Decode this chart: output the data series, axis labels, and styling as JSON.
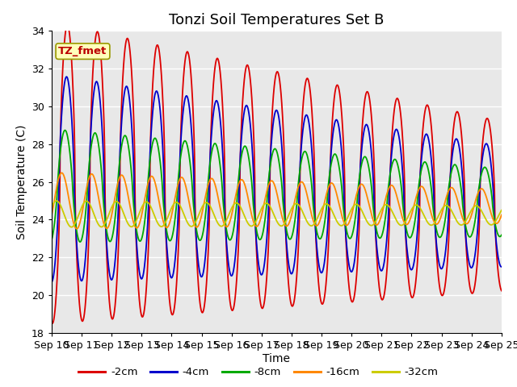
{
  "title": "Tonzi Soil Temperatures Set B",
  "xlabel": "Time",
  "ylabel": "Soil Temperature (C)",
  "ylim": [
    18,
    34
  ],
  "yticks": [
    18,
    20,
    22,
    24,
    26,
    28,
    30,
    32,
    34
  ],
  "n_days": 15,
  "legend_label": "TZ_fmet",
  "xtick_labels": [
    "Sep 10",
    "Sep 11",
    "Sep 12",
    "Sep 13",
    "Sep 14",
    "Sep 15",
    "Sep 16",
    "Sep 17",
    "Sep 18",
    "Sep 19",
    "Sep 20",
    "Sep 21",
    "Sep 22",
    "Sep 23",
    "Sep 24",
    "Sep 25"
  ],
  "series_labels": [
    "-2cm",
    "-4cm",
    "-8cm",
    "-16cm",
    "-32cm"
  ],
  "series_colors": [
    "#dd0000",
    "#0000cc",
    "#00aa00",
    "#ff8800",
    "#cccc00"
  ],
  "background_color": "#e8e8e8",
  "plot_bg": "#e8e8e8",
  "title_fontsize": 13,
  "axis_fontsize": 10,
  "tick_fontsize": 9
}
